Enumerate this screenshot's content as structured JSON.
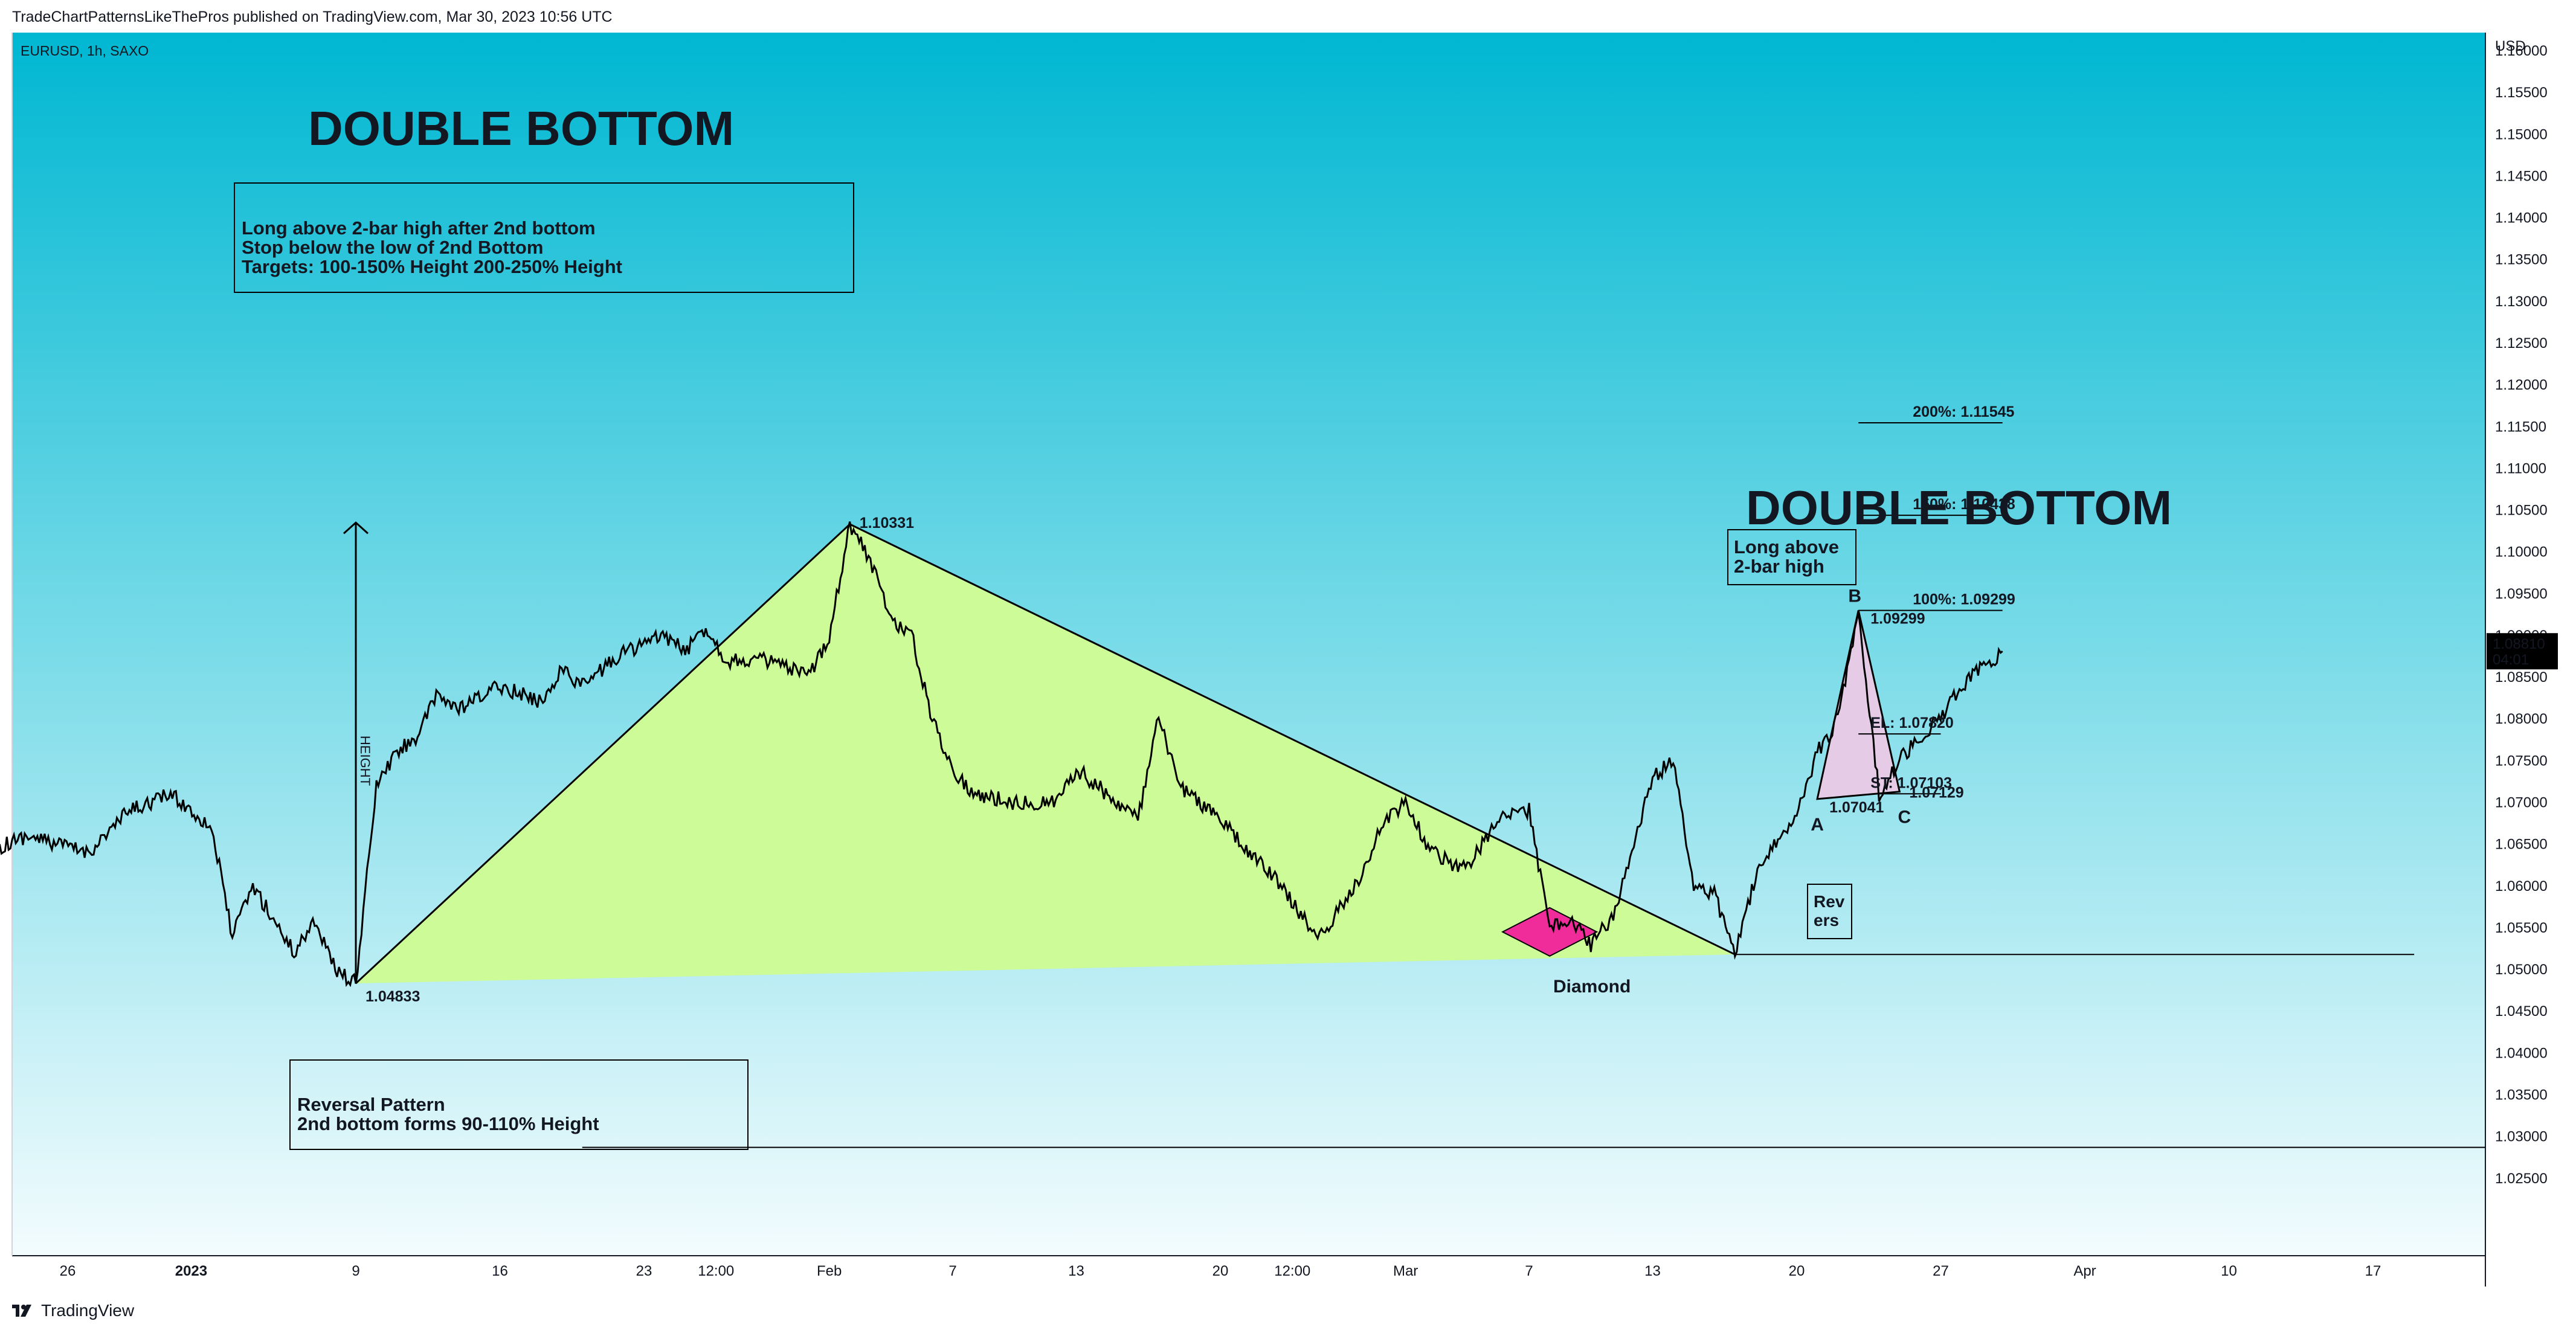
{
  "header": {
    "publish_line": "TradeChartPatternsLikeThePros published on TradingView.com, Mar 30, 2023 10:56 UTC"
  },
  "footer": {
    "brand": "TradingView"
  },
  "chart_data": {
    "type": "line",
    "symbol_line": "EURUSD, 1h, SAXO",
    "currency": "USD",
    "ylim": [
      1.02,
      1.164
    ],
    "y_ticks": [
      "1.16000",
      "1.15500",
      "1.15000",
      "1.14500",
      "1.14000",
      "1.13500",
      "1.13000",
      "1.12500",
      "1.12000",
      "1.11500",
      "1.11000",
      "1.10500",
      "1.10000",
      "1.09500",
      "1.09000",
      "1.08500",
      "1.08000",
      "1.07500",
      "1.07000",
      "1.06500",
      "1.06000",
      "1.05500",
      "1.05000",
      "1.04500",
      "1.04000",
      "1.03500",
      "1.03000",
      "1.02500"
    ],
    "x_ticks": [
      {
        "label": "26",
        "x": "2022-12-26"
      },
      {
        "label": "2023",
        "x": "2023-01-01",
        "bold": true
      },
      {
        "label": "9",
        "x": "2023-01-09"
      },
      {
        "label": "16",
        "x": "2023-01-16"
      },
      {
        "label": "23",
        "x": "2023-01-23"
      },
      {
        "label": "12:00",
        "x": "2023-01-26T12:00"
      },
      {
        "label": "Feb",
        "x": "2023-02-01"
      },
      {
        "label": "7",
        "x": "2023-02-07"
      },
      {
        "label": "13",
        "x": "2023-02-13"
      },
      {
        "label": "20",
        "x": "2023-02-20"
      },
      {
        "label": "12:00",
        "x": "2023-02-23T12:00"
      },
      {
        "label": "Mar",
        "x": "2023-03-01"
      },
      {
        "label": "7",
        "x": "2023-03-07"
      },
      {
        "label": "13",
        "x": "2023-03-13"
      },
      {
        "label": "20",
        "x": "2023-03-20"
      },
      {
        "label": "27",
        "x": "2023-03-27"
      },
      {
        "label": "Apr",
        "x": "2023-04-03"
      },
      {
        "label": "10",
        "x": "2023-04-10"
      },
      {
        "label": "17",
        "x": "2023-04-17"
      }
    ],
    "series": [
      {
        "x": [
          "2022-12-20",
          "2022-12-22",
          "2022-12-24",
          "2022-12-27",
          "2022-12-29",
          "2022-12-31",
          "2023-01-02",
          "2023-01-03",
          "2023-01-04",
          "2023-01-05",
          "2023-01-06",
          "2023-01-07",
          "2023-01-08",
          "2023-01-09",
          "2023-01-10",
          "2023-01-11",
          "2023-01-12",
          "2023-01-13",
          "2023-01-14",
          "2023-01-16",
          "2023-01-18",
          "2023-01-19",
          "2023-01-20",
          "2023-01-22",
          "2023-01-24",
          "2023-01-25",
          "2023-01-26",
          "2023-01-27",
          "2023-01-28",
          "2023-01-29",
          "2023-01-30",
          "2023-01-31",
          "2023-02-01",
          "2023-02-02",
          "2023-02-03",
          "2023-02-04",
          "2023-02-05",
          "2023-02-06",
          "2023-02-07",
          "2023-02-08",
          "2023-02-10",
          "2023-02-12",
          "2023-02-13",
          "2023-02-14",
          "2023-02-16",
          "2023-02-17",
          "2023-02-18",
          "2023-02-20",
          "2023-02-21",
          "2023-02-23",
          "2023-02-24",
          "2023-02-25",
          "2023-02-26",
          "2023-02-27",
          "2023-02-28",
          "2023-03-01",
          "2023-03-02",
          "2023-03-03",
          "2023-03-04",
          "2023-03-05",
          "2023-03-06",
          "2023-03-07",
          "2023-03-08",
          "2023-03-09",
          "2023-03-10",
          "2023-03-11",
          "2023-03-12",
          "2023-03-13",
          "2023-03-14",
          "2023-03-15",
          "2023-03-16",
          "2023-03-17",
          "2023-03-18",
          "2023-03-19",
          "2023-03-20",
          "2023-03-21",
          "2023-03-22",
          "2023-03-23",
          "2023-03-24",
          "2023-03-25",
          "2023-03-26",
          "2023-03-27",
          "2023-03-28",
          "2023-03-29",
          "2023-03-30"
        ],
        "values": [
          1.06,
          1.064,
          1.066,
          1.064,
          1.069,
          1.071,
          1.067,
          1.054,
          1.06,
          1.056,
          1.052,
          1.056,
          1.05,
          1.0483,
          1.072,
          1.076,
          1.078,
          1.083,
          1.081,
          1.084,
          1.082,
          1.086,
          1.084,
          1.088,
          1.09,
          1.088,
          1.091,
          1.087,
          1.087,
          1.087,
          1.086,
          1.085,
          1.09,
          1.1033,
          1.099,
          1.092,
          1.09,
          1.08,
          1.074,
          1.071,
          1.07,
          1.07,
          1.074,
          1.072,
          1.068,
          1.08,
          1.072,
          1.068,
          1.065,
          1.06,
          1.056,
          1.054,
          1.058,
          1.062,
          1.068,
          1.07,
          1.065,
          1.063,
          1.062,
          1.066,
          1.069,
          1.069,
          1.055,
          1.056,
          1.053,
          1.056,
          1.064,
          1.073,
          1.075,
          1.06,
          1.059,
          1.052,
          1.061,
          1.065,
          1.069,
          1.076,
          1.08,
          1.093,
          1.071,
          1.075,
          1.078,
          1.08,
          1.084,
          1.086,
          1.0881
        ]
      }
    ],
    "price_label": {
      "value": "1.08810",
      "countdown": "04:01"
    },
    "annotations": {
      "title_left": "DOUBLE BOTTOM",
      "rules_box": [
        "Long above 2-bar high after 2nd bottom",
        "Stop below the low of 2nd Bottom",
        "Targets: 100-150% Height 200-250% Height"
      ],
      "reversal_box": [
        "Reversal Pattern",
        "2nd bottom forms 90-110% Height"
      ],
      "height_label": "HEIGHT",
      "low_label": "1.04833",
      "high_label": "1.10331",
      "diamond_label": "Diamond",
      "title_right": "DOUBLE BOTTOM",
      "long_box": [
        "Long above",
        "2-bar high"
      ],
      "target_200": "200%: 1.11545",
      "target_150": "150%: 1.10438",
      "target_100": "100%: 1.09299",
      "point_b": "B",
      "point_b_value": "1.09299",
      "point_a": "A",
      "point_a_value": "1.07041",
      "point_c": "C",
      "point_c_value": "1.07129",
      "el_label": "EL: 1.07820",
      "st_label": "ST: 1.07103",
      "revers_box": [
        "Rev",
        "ers"
      ]
    }
  }
}
